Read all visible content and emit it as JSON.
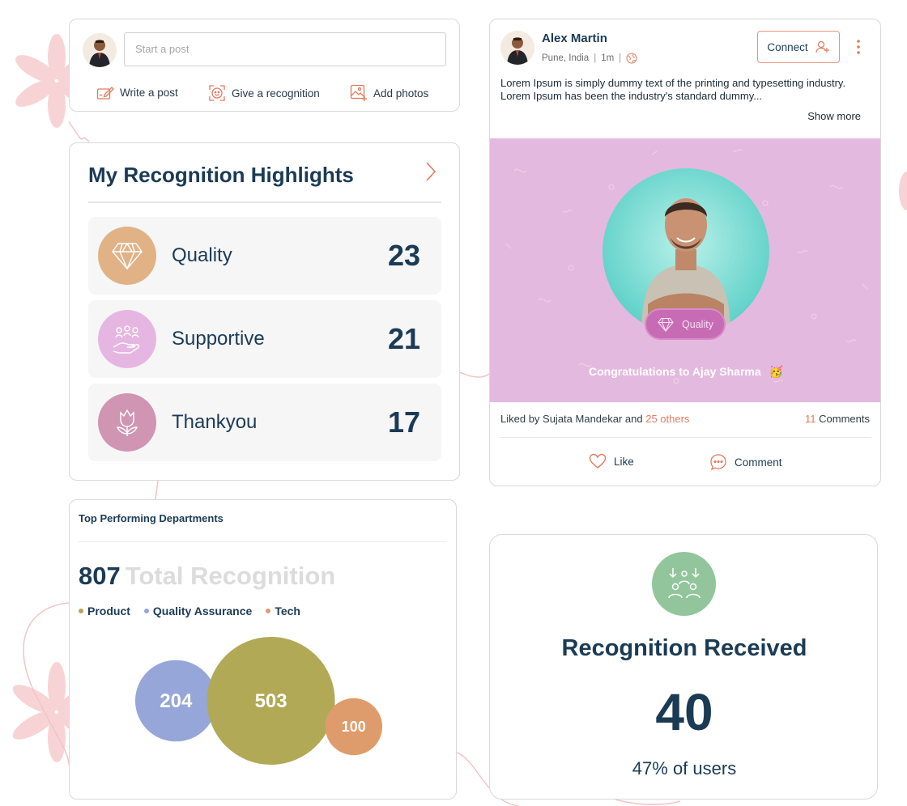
{
  "colors": {
    "navy": "#1b3b55",
    "accent_coral": "#e07b5f",
    "quality": "#e0b286",
    "supportive": "#e6b6e2",
    "thankyou": "#cf95b3",
    "banner_pink": "#e4b9df",
    "badge_magenta": "#c86bb5",
    "received_green": "#92c59c"
  },
  "composer": {
    "placeholder": "Start a post",
    "actions": [
      {
        "label": "Write a post",
        "icon": "write-icon"
      },
      {
        "label": "Give a recognition",
        "icon": "recognition-icon"
      },
      {
        "label": "Add photos",
        "icon": "add-photo-icon"
      }
    ]
  },
  "highlights": {
    "title": "My Recognition Highlights",
    "items": [
      {
        "label": "Quality",
        "count": "23",
        "icon": "diamond-icon",
        "color": "#e0b286"
      },
      {
        "label": "Supportive",
        "count": "21",
        "icon": "helping-hand-icon",
        "color": "#e6b6e2"
      },
      {
        "label": "Thankyou",
        "count": "17",
        "icon": "tulip-icon",
        "color": "#cf95b3"
      }
    ]
  },
  "departments": {
    "title": "Top Performing Departments",
    "total": "807",
    "total_label": "Total Recognition",
    "legend": [
      {
        "label": "Product",
        "color": "#b1a955"
      },
      {
        "label": "Quality Assurance",
        "color": "#97a6d9"
      },
      {
        "label": "Tech",
        "color": "#de9c6c"
      }
    ]
  },
  "chart_data": {
    "type": "bubble",
    "title": "Top Performing Departments",
    "series": [
      {
        "name": "Quality Assurance",
        "value": 204,
        "color": "#97a6d9"
      },
      {
        "name": "Product",
        "value": 503,
        "color": "#b1a955"
      },
      {
        "name": "Tech",
        "value": 100,
        "color": "#de9c6c"
      }
    ]
  },
  "post": {
    "author": "Alex Martin",
    "location": "Pune, India",
    "time": "1m",
    "connect_label": "Connect",
    "body_line1": "Lorem Ipsum is simply dummy text of the printing and typesetting industry.",
    "body_line2": "Lorem Ipsum has been the industry's standard dummy...",
    "show_more": "Show more",
    "badge_label": "Quality",
    "congrats": "Congratulations to Ajay Sharma",
    "emoji": "🥳",
    "liked_by_prefix": "Liked by Sujata Mandekar and ",
    "liked_by_others": "25 others",
    "comments_count": "11",
    "comments_label": " Comments",
    "like_label": "Like",
    "comment_label": "Comment"
  },
  "received": {
    "title": "Recognition Received",
    "count": "40",
    "subtitle": "47% of users"
  }
}
